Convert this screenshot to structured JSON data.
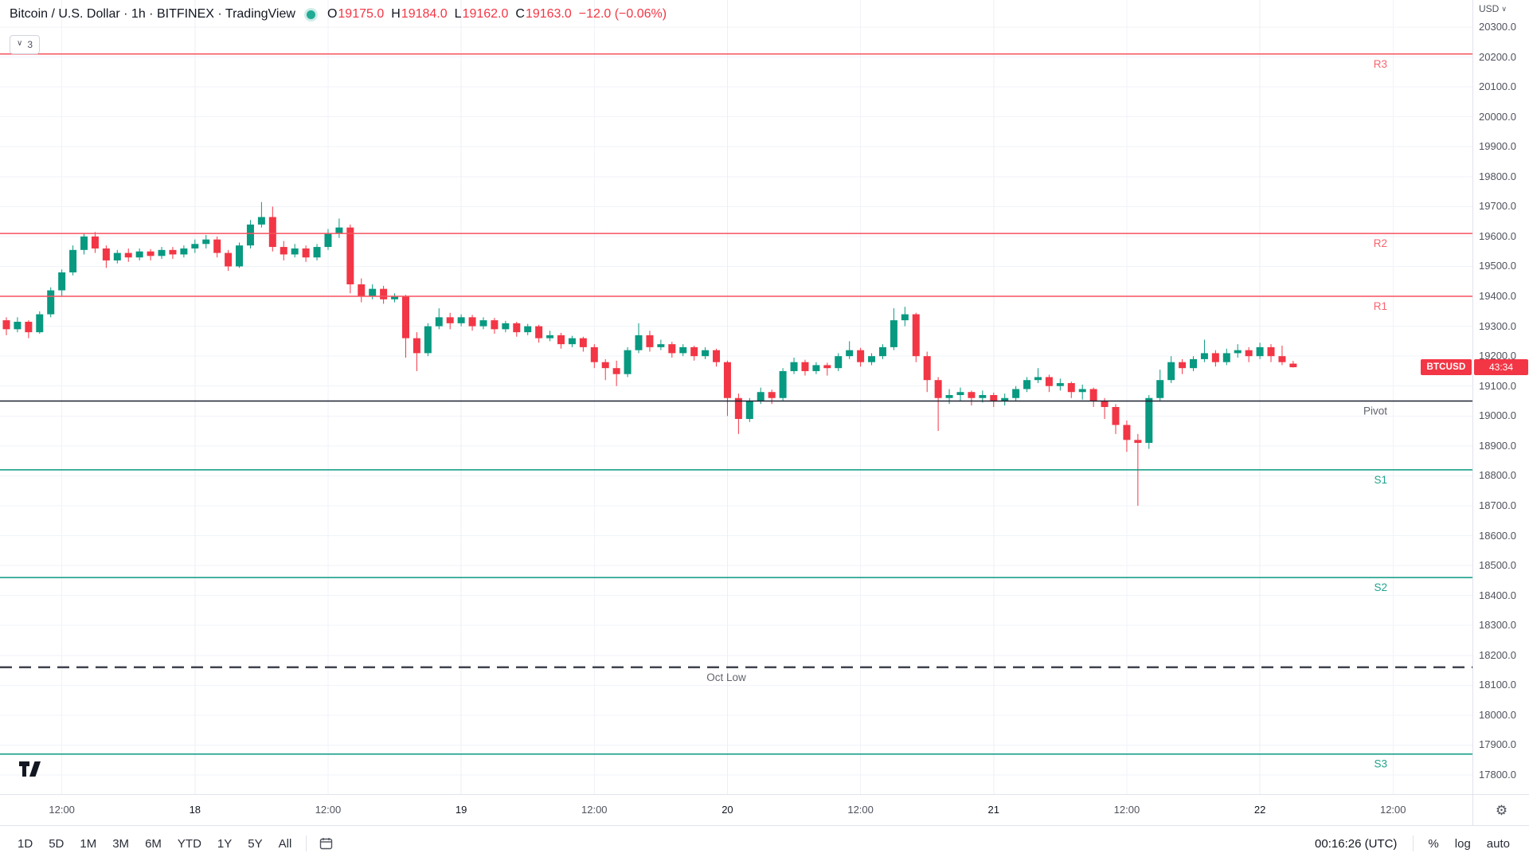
{
  "colors": {
    "up": "#089981",
    "down": "#f23645",
    "grid": "#f0f3fa",
    "grid_major": "#eceff6",
    "border": "#e0e3eb",
    "axis_text": "#50535e",
    "badge_red": "#f23645"
  },
  "header": {
    "title": "Bitcoin / U.S. Dollar · 1h · BITFINEX · TradingView",
    "ohlc": [
      {
        "k": "O",
        "v": "19175.0"
      },
      {
        "k": "H",
        "v": "19184.0"
      },
      {
        "k": "L",
        "v": "19162.0"
      },
      {
        "k": "C",
        "v": "19163.0"
      }
    ],
    "change": "−12.0 (−0.06%)",
    "indicators_count": "3"
  },
  "price_scale": {
    "currency": "USD",
    "countdown": "43:34",
    "symbol_badge": "BTCUSD"
  },
  "toolbar": {
    "ranges": [
      "1D",
      "5D",
      "1M",
      "3M",
      "6M",
      "YTD",
      "1Y",
      "5Y",
      "All"
    ],
    "clock": "00:16:26 (UTC)",
    "percent": "%",
    "log": "log",
    "auto": "auto"
  },
  "chart_data": {
    "type": "candlestick",
    "title": "Bitcoin / U.S. Dollar",
    "interval": "1h",
    "exchange": "BITFINEX",
    "last_price": 19163.0,
    "axis": {
      "price_max": 20300,
      "price_min": 17800,
      "price_step": 100
    },
    "time_ticks": [
      {
        "label": "12:00",
        "idx": 5
      },
      {
        "label": "18",
        "idx": 17,
        "major": true
      },
      {
        "label": "12:00",
        "idx": 29
      },
      {
        "label": "19",
        "idx": 41,
        "major": true
      },
      {
        "label": "12:00",
        "idx": 53
      },
      {
        "label": "20",
        "idx": 65,
        "major": true
      },
      {
        "label": "12:00",
        "idx": 77
      },
      {
        "label": "21",
        "idx": 89,
        "major": true
      },
      {
        "label": "12:00",
        "idx": 101
      },
      {
        "label": "22",
        "idx": 113,
        "major": true
      },
      {
        "label": "12:00",
        "idx": 125
      }
    ],
    "levels": [
      {
        "label": "R3",
        "price": 20210,
        "color": "#f7525f",
        "width": 1.5
      },
      {
        "label": "R2",
        "price": 19610,
        "color": "#f7525f",
        "width": 1.5
      },
      {
        "label": "R1",
        "price": 19400,
        "color": "#f7525f",
        "width": 1.5
      },
      {
        "label": "Pivot",
        "price": 19050,
        "color": "#1c2030",
        "width": 1.5,
        "label_color": "#50535e"
      },
      {
        "label": "S1",
        "price": 18820,
        "color": "#089981",
        "width": 1.5
      },
      {
        "label": "S2",
        "price": 18460,
        "color": "#089981",
        "width": 1.5
      },
      {
        "label": "Oct Low",
        "price": 18160,
        "color": "#40444f",
        "width": 2.5,
        "dash": "15 9",
        "label_x": 912,
        "label_color": "#50535e"
      },
      {
        "label": "S3",
        "price": 17870,
        "color": "#089981",
        "width": 1.5
      }
    ],
    "candles": [
      [
        19320,
        19330,
        19270,
        19290
      ],
      [
        19290,
        19330,
        19280,
        19315
      ],
      [
        19315,
        19320,
        19260,
        19280
      ],
      [
        19280,
        19350,
        19275,
        19340
      ],
      [
        19340,
        19430,
        19330,
        19420
      ],
      [
        19420,
        19490,
        19400,
        19480
      ],
      [
        19480,
        19570,
        19470,
        19555
      ],
      [
        19555,
        19610,
        19540,
        19600
      ],
      [
        19600,
        19615,
        19545,
        19560
      ],
      [
        19560,
        19570,
        19495,
        19520
      ],
      [
        19520,
        19555,
        19510,
        19545
      ],
      [
        19545,
        19560,
        19515,
        19530
      ],
      [
        19530,
        19560,
        19520,
        19550
      ],
      [
        19550,
        19558,
        19520,
        19535
      ],
      [
        19535,
        19565,
        19525,
        19555
      ],
      [
        19555,
        19565,
        19525,
        19540
      ],
      [
        19540,
        19570,
        19530,
        19560
      ],
      [
        19560,
        19590,
        19545,
        19575
      ],
      [
        19575,
        19605,
        19560,
        19590
      ],
      [
        19590,
        19600,
        19530,
        19545
      ],
      [
        19545,
        19555,
        19485,
        19500
      ],
      [
        19500,
        19580,
        19495,
        19570
      ],
      [
        19570,
        19655,
        19560,
        19640
      ],
      [
        19640,
        19715,
        19630,
        19665
      ],
      [
        19665,
        19700,
        19550,
        19565
      ],
      [
        19565,
        19585,
        19520,
        19540
      ],
      [
        19540,
        19575,
        19530,
        19560
      ],
      [
        19560,
        19570,
        19515,
        19530
      ],
      [
        19530,
        19575,
        19520,
        19565
      ],
      [
        19565,
        19625,
        19555,
        19610
      ],
      [
        19610,
        19660,
        19595,
        19630
      ],
      [
        19630,
        19640,
        19410,
        19440
      ],
      [
        19440,
        19460,
        19380,
        19400
      ],
      [
        19400,
        19440,
        19390,
        19425
      ],
      [
        19425,
        19435,
        19375,
        19390
      ],
      [
        19390,
        19410,
        19380,
        19400
      ],
      [
        19400,
        19405,
        19195,
        19260
      ],
      [
        19260,
        19280,
        19150,
        19210
      ],
      [
        19210,
        19310,
        19200,
        19300
      ],
      [
        19300,
        19360,
        19290,
        19330
      ],
      [
        19330,
        19345,
        19290,
        19310
      ],
      [
        19310,
        19340,
        19300,
        19330
      ],
      [
        19330,
        19338,
        19285,
        19300
      ],
      [
        19300,
        19330,
        19290,
        19320
      ],
      [
        19320,
        19328,
        19275,
        19290
      ],
      [
        19290,
        19318,
        19280,
        19310
      ],
      [
        19310,
        19315,
        19265,
        19280
      ],
      [
        19280,
        19308,
        19270,
        19300
      ],
      [
        19300,
        19305,
        19245,
        19260
      ],
      [
        19260,
        19285,
        19250,
        19270
      ],
      [
        19270,
        19278,
        19225,
        19240
      ],
      [
        19240,
        19268,
        19230,
        19260
      ],
      [
        19260,
        19265,
        19215,
        19230
      ],
      [
        19230,
        19240,
        19160,
        19180
      ],
      [
        19180,
        19190,
        19120,
        19160
      ],
      [
        19160,
        19185,
        19100,
        19140
      ],
      [
        19140,
        19230,
        19130,
        19220
      ],
      [
        19220,
        19310,
        19210,
        19270
      ],
      [
        19270,
        19285,
        19215,
        19230
      ],
      [
        19230,
        19255,
        19220,
        19240
      ],
      [
        19240,
        19248,
        19195,
        19210
      ],
      [
        19210,
        19240,
        19200,
        19230
      ],
      [
        19230,
        19235,
        19185,
        19200
      ],
      [
        19200,
        19230,
        19190,
        19220
      ],
      [
        19220,
        19225,
        19165,
        19180
      ],
      [
        19180,
        19185,
        19000,
        19060
      ],
      [
        19060,
        19075,
        18940,
        18990
      ],
      [
        18990,
        19060,
        18980,
        19050
      ],
      [
        19050,
        19095,
        19040,
        19080
      ],
      [
        19080,
        19088,
        19040,
        19060
      ],
      [
        19060,
        19160,
        19050,
        19150
      ],
      [
        19150,
        19195,
        19140,
        19180
      ],
      [
        19180,
        19188,
        19135,
        19150
      ],
      [
        19150,
        19180,
        19140,
        19170
      ],
      [
        19170,
        19178,
        19135,
        19160
      ],
      [
        19160,
        19210,
        19150,
        19200
      ],
      [
        19200,
        19250,
        19190,
        19220
      ],
      [
        19220,
        19228,
        19165,
        19180
      ],
      [
        19180,
        19210,
        19170,
        19200
      ],
      [
        19200,
        19240,
        19190,
        19230
      ],
      [
        19230,
        19360,
        19220,
        19320
      ],
      [
        19320,
        19365,
        19300,
        19340
      ],
      [
        19340,
        19345,
        19180,
        19200
      ],
      [
        19200,
        19215,
        19080,
        19120
      ],
      [
        19120,
        19130,
        18950,
        19060
      ],
      [
        19060,
        19090,
        19040,
        19070
      ],
      [
        19070,
        19095,
        19050,
        19080
      ],
      [
        19080,
        19085,
        19035,
        19060
      ],
      [
        19060,
        19085,
        19045,
        19070
      ],
      [
        19070,
        19078,
        19030,
        19050
      ],
      [
        19050,
        19075,
        19035,
        19060
      ],
      [
        19060,
        19100,
        19050,
        19090
      ],
      [
        19090,
        19130,
        19080,
        19120
      ],
      [
        19120,
        19160,
        19110,
        19130
      ],
      [
        19130,
        19138,
        19080,
        19100
      ],
      [
        19100,
        19125,
        19085,
        19110
      ],
      [
        19110,
        19115,
        19060,
        19080
      ],
      [
        19080,
        19105,
        19055,
        19090
      ],
      [
        19090,
        19095,
        19030,
        19050
      ],
      [
        19050,
        19060,
        18990,
        19030
      ],
      [
        19030,
        19040,
        18940,
        18970
      ],
      [
        18970,
        18985,
        18880,
        18920
      ],
      [
        18920,
        18940,
        18700,
        18910
      ],
      [
        18910,
        19070,
        18890,
        19060
      ],
      [
        19060,
        19155,
        19050,
        19120
      ],
      [
        19120,
        19200,
        19110,
        19180
      ],
      [
        19180,
        19190,
        19140,
        19160
      ],
      [
        19160,
        19200,
        19150,
        19190
      ],
      [
        19190,
        19255,
        19180,
        19210
      ],
      [
        19210,
        19220,
        19165,
        19180
      ],
      [
        19180,
        19225,
        19170,
        19210
      ],
      [
        19210,
        19240,
        19195,
        19220
      ],
      [
        19220,
        19230,
        19180,
        19200
      ],
      [
        19200,
        19245,
        19190,
        19230
      ],
      [
        19230,
        19240,
        19180,
        19200
      ],
      [
        19200,
        19235,
        19170,
        19180
      ],
      [
        19175,
        19184,
        19162,
        19163
      ]
    ]
  }
}
